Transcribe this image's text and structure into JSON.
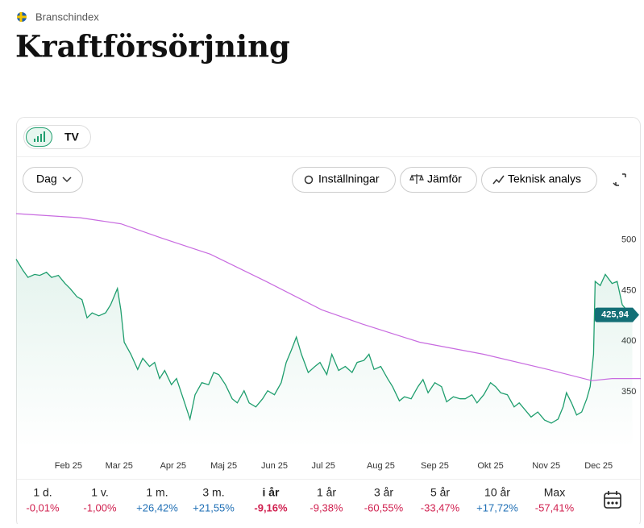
{
  "header": {
    "category": "Branschindex",
    "title": "Kraftförsörjning"
  },
  "toolbar": {
    "interval": "Dag",
    "settings": "Inställningar",
    "compare": "Jämför",
    "analysis": "Teknisk analys"
  },
  "chart_data": {
    "type": "line",
    "xlim": [
      0,
      370
    ],
    "ylim": [
      295,
      534
    ],
    "xticks": [
      {
        "value": 31,
        "label": "Feb 25"
      },
      {
        "value": 61,
        "label": "Mar 25"
      },
      {
        "value": 93,
        "label": "Apr 25"
      },
      {
        "value": 123,
        "label": "Maj 25"
      },
      {
        "value": 153,
        "label": "Jun 25"
      },
      {
        "value": 182,
        "label": "Jul 25"
      },
      {
        "value": 216,
        "label": "Aug 25"
      },
      {
        "value": 248,
        "label": "Sep 25"
      },
      {
        "value": 281,
        "label": "Okt 25"
      },
      {
        "value": 314,
        "label": "Nov 25"
      },
      {
        "value": 345,
        "label": "Dec 25"
      }
    ],
    "yticks": [
      350,
      400,
      450,
      500
    ],
    "grid": false,
    "current": {
      "value": 425.94,
      "label": "425,94"
    },
    "series": [
      {
        "color": "#1f9e6e",
        "x": [
          0,
          4,
          7,
          11,
          14,
          18,
          21,
          25,
          29,
          32,
          36,
          39,
          42,
          45,
          49,
          53,
          56,
          60,
          62,
          64,
          68,
          72,
          75,
          79,
          82,
          85,
          88,
          92,
          95,
          99,
          103,
          106,
          110,
          114,
          117,
          120,
          124,
          128,
          131,
          135,
          138,
          142,
          146,
          149,
          153,
          157,
          160,
          163,
          166,
          169,
          173,
          177,
          180,
          184,
          187,
          191,
          195,
          199,
          202,
          206,
          209,
          212,
          216,
          220,
          223,
          227,
          230,
          234,
          238,
          241,
          244,
          248,
          252,
          255,
          259,
          263,
          266,
          270,
          273,
          277,
          281,
          284,
          287,
          291,
          295,
          298,
          302,
          305,
          309,
          313,
          317,
          321,
          324,
          326,
          329,
          332,
          335,
          338,
          340,
          342,
          343,
          346,
          349,
          353,
          356,
          359,
          362,
          365
        ],
        "values": [
          481,
          470,
          463,
          466,
          465,
          468,
          463,
          465,
          457,
          452,
          444,
          441,
          423,
          428,
          425,
          428,
          436,
          452,
          431,
          399,
          387,
          372,
          383,
          375,
          379,
          363,
          371,
          357,
          363,
          343,
          323,
          347,
          359,
          357,
          369,
          367,
          357,
          343,
          339,
          351,
          339,
          335,
          343,
          351,
          347,
          359,
          379,
          391,
          404,
          387,
          369,
          375,
          379,
          367,
          387,
          371,
          375,
          369,
          379,
          381,
          387,
          372,
          375,
          363,
          355,
          341,
          345,
          343,
          355,
          362,
          349,
          359,
          355,
          340,
          345,
          343,
          343,
          347,
          339,
          347,
          359,
          355,
          349,
          347,
          335,
          339,
          331,
          325,
          330,
          322,
          319,
          323,
          335,
          349,
          339,
          327,
          330,
          343,
          355,
          387,
          459,
          455,
          466,
          457,
          459,
          436,
          430,
          425.94
        ]
      },
      {
        "color": "#c86be0",
        "x": [
          0,
          38,
          62,
          86,
          115,
          148,
          181,
          205,
          239,
          277,
          315,
          341,
          353,
          370
        ],
        "values": [
          526,
          522,
          516,
          502,
          486,
          459,
          431,
          417,
          399,
          387,
          372,
          361,
          363,
          363
        ]
      }
    ]
  },
  "periods": [
    {
      "label": "1 d.",
      "change": "-0,01%"
    },
    {
      "label": "1 v.",
      "change": "-1,00%"
    },
    {
      "label": "1 m.",
      "change": "+26,42%"
    },
    {
      "label": "3 m.",
      "change": "+21,55%"
    },
    {
      "label": "i år",
      "change": "-9,16%"
    },
    {
      "label": "1 år",
      "change": "-9,38%"
    },
    {
      "label": "3 år",
      "change": "-60,55%"
    },
    {
      "label": "5 år",
      "change": "-33,47%"
    },
    {
      "label": "10 år",
      "change": "+17,72%"
    },
    {
      "label": "Max",
      "change": "-57,41%"
    }
  ]
}
